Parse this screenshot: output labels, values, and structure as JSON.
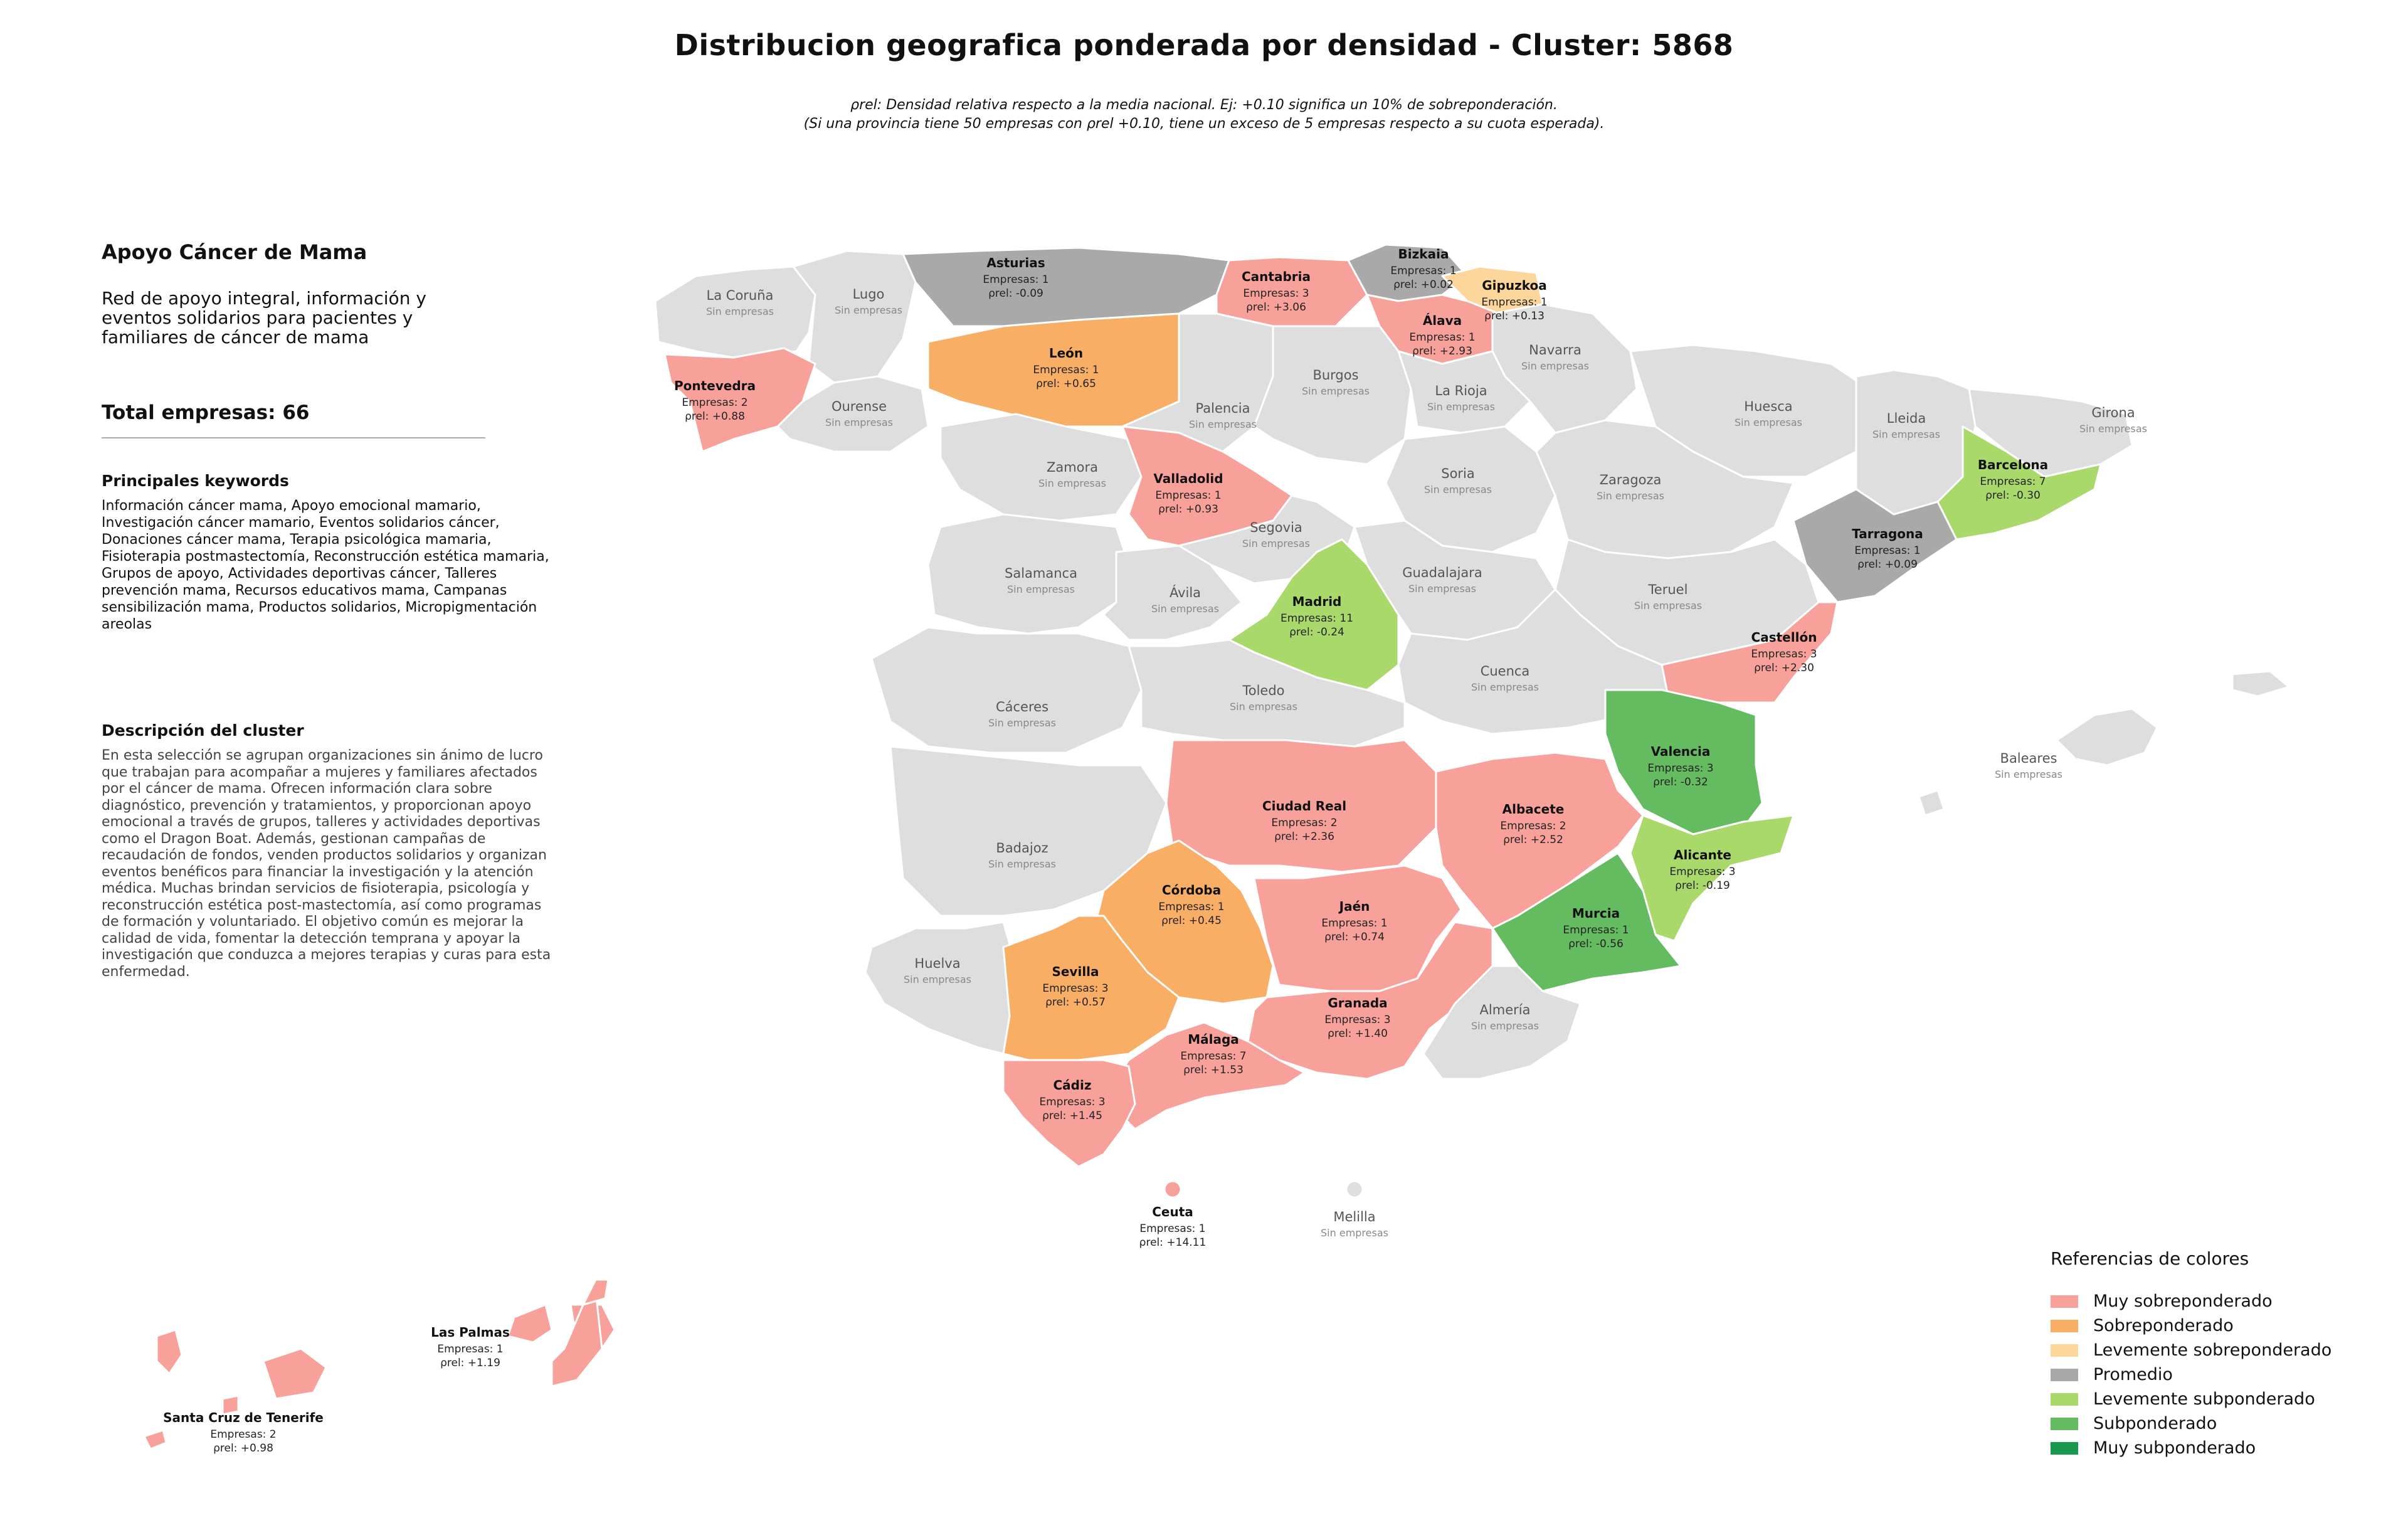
{
  "title": "Distribucion geografica ponderada por densidad - Cluster: 5868",
  "note_line1": "ρrel: Densidad relativa respecto a la media nacional. Ej: +0.10 significa un 10% de sobreponderación.",
  "note_line2": "(Si una provincia tiene 50 empresas con ρrel +0.10, tiene un exceso de 5 empresas respecto a su cuota esperada).",
  "panel": {
    "heading": "Apoyo Cáncer de Mama",
    "tagline": "Red de apoyo integral, información y eventos solidarios para pacientes y familiares de cáncer de mama",
    "total": "Total empresas: 66",
    "keywords_title": "Principales keywords",
    "keywords": "Información cáncer mama, Apoyo emocional mamario, Investigación cáncer mamario, Eventos solidarios cáncer, Donaciones cáncer mama, Terapia psicológica mamaria, Fisioterapia postmastectomía, Reconstrucción estética mamaria, Grupos de apoyo, Actividades deportivas cáncer, Talleres prevención mama, Recursos educativos mama, Campanas sensibilización mama, Productos solidarios, Micropigmentación areolas",
    "description_title": "Descripción del cluster",
    "description": "En esta selección se agrupan organizaciones sin ánimo de lucro que trabajan para acompañar a mujeres y familiares afectados por el cáncer de mama. Ofrecen información clara sobre diagnóstico, prevención y tratamientos, y proporcionan apoyo emocional a través de grupos, talleres y actividades deportivas como el Dragon Boat. Además, gestionan campañas de recaudación de fondos, venden productos solidarios y organizan eventos benéficos para financiar la investigación y la atención médica. Muchas brindan servicios de fisioterapia, psicología y reconstrucción estética post-mastectomía, así como programas de formación y voluntariado. El objetivo común es mejorar la calidad de vida, fomentar la detección temprana y apoyar la investigación que conduzca a mejores terapias y curas para esta enfermedad."
  },
  "legend": {
    "title": "Referencias de colores",
    "items": [
      {
        "label": "Muy sobreponderado",
        "color": "#f8a19b"
      },
      {
        "label": "Sobreponderado",
        "color": "#f9ae66"
      },
      {
        "label": "Levemente sobreponderado",
        "color": "#fcd69a"
      },
      {
        "label": "Promedio",
        "color": "#a9a9a9"
      },
      {
        "label": "Levemente subponderado",
        "color": "#a9d96b"
      },
      {
        "label": "Subponderado",
        "color": "#64bb60"
      },
      {
        "label": "Muy subponderado",
        "color": "#1a9850"
      }
    ]
  },
  "no_data_color": "#dedede",
  "no_data_label": "Sin empresas",
  "empresas_prefix": "Empresas: ",
  "rho_label": "ρrel: ",
  "provinces_with_data": [
    {
      "name": "Asturias",
      "empresas": 1,
      "rho": "-0.09",
      "category": "Promedio"
    },
    {
      "name": "Cantabria",
      "empresas": 3,
      "rho": "+3.06",
      "category": "Muy sobreponderado"
    },
    {
      "name": "Bizkaia",
      "empresas": 1,
      "rho": "+0.02",
      "category": "Promedio"
    },
    {
      "name": "Gipuzkoa",
      "empresas": 1,
      "rho": "+0.13",
      "category": "Levemente sobreponderado"
    },
    {
      "name": "Álava",
      "empresas": 1,
      "rho": "+2.93",
      "category": "Muy sobreponderado"
    },
    {
      "name": "Pontevedra",
      "empresas": 2,
      "rho": "+0.88",
      "category": "Muy sobreponderado"
    },
    {
      "name": "León",
      "empresas": 1,
      "rho": "+0.65",
      "category": "Sobreponderado"
    },
    {
      "name": "Valladolid",
      "empresas": 1,
      "rho": "+0.93",
      "category": "Muy sobreponderado"
    },
    {
      "name": "Barcelona",
      "empresas": 7,
      "rho": "-0.30",
      "category": "Levemente subponderado"
    },
    {
      "name": "Tarragona",
      "empresas": 1,
      "rho": "+0.09",
      "category": "Promedio"
    },
    {
      "name": "Madrid",
      "empresas": 11,
      "rho": "-0.24",
      "category": "Levemente subponderado"
    },
    {
      "name": "Castellón",
      "empresas": 3,
      "rho": "+2.30",
      "category": "Muy sobreponderado"
    },
    {
      "name": "Valencia",
      "empresas": 3,
      "rho": "-0.32",
      "category": "Subponderado"
    },
    {
      "name": "Ciudad Real",
      "empresas": 2,
      "rho": "+2.36",
      "category": "Muy sobreponderado"
    },
    {
      "name": "Albacete",
      "empresas": 2,
      "rho": "+2.52",
      "category": "Muy sobreponderado"
    },
    {
      "name": "Alicante",
      "empresas": 3,
      "rho": "-0.19",
      "category": "Levemente subponderado"
    },
    {
      "name": "Córdoba",
      "empresas": 1,
      "rho": "+0.45",
      "category": "Sobreponderado"
    },
    {
      "name": "Jaén",
      "empresas": 1,
      "rho": "+0.74",
      "category": "Muy sobreponderado"
    },
    {
      "name": "Murcia",
      "empresas": 1,
      "rho": "-0.56",
      "category": "Subponderado"
    },
    {
      "name": "Sevilla",
      "empresas": 3,
      "rho": "+0.57",
      "category": "Sobreponderado"
    },
    {
      "name": "Granada",
      "empresas": 3,
      "rho": "+1.40",
      "category": "Muy sobreponderado"
    },
    {
      "name": "Málaga",
      "empresas": 7,
      "rho": "+1.53",
      "category": "Muy sobreponderado"
    },
    {
      "name": "Cádiz",
      "empresas": 3,
      "rho": "+1.45",
      "category": "Muy sobreponderado"
    },
    {
      "name": "Ceuta",
      "empresas": 1,
      "rho": "+14.11",
      "category": "Muy sobreponderado"
    },
    {
      "name": "Las Palmas",
      "empresas": 1,
      "rho": "+1.19",
      "category": "Muy sobreponderado"
    },
    {
      "name": "Santa Cruz de Tenerife",
      "empresas": 2,
      "rho": "+0.98",
      "category": "Muy sobreponderado"
    }
  ],
  "provinces_without_data": [
    "La Coruña",
    "Lugo",
    "Ourense",
    "Navarra",
    "Burgos",
    "La Rioja",
    "Palencia",
    "Huesca",
    "Lleida",
    "Girona",
    "Zamora",
    "Soria",
    "Zaragoza",
    "Segovia",
    "Salamanca",
    "Ávila",
    "Guadalajara",
    "Teruel",
    "Cuenca",
    "Cáceres",
    "Toledo",
    "Badajoz",
    "Huelva",
    "Almería",
    "Baleares",
    "Melilla"
  ]
}
